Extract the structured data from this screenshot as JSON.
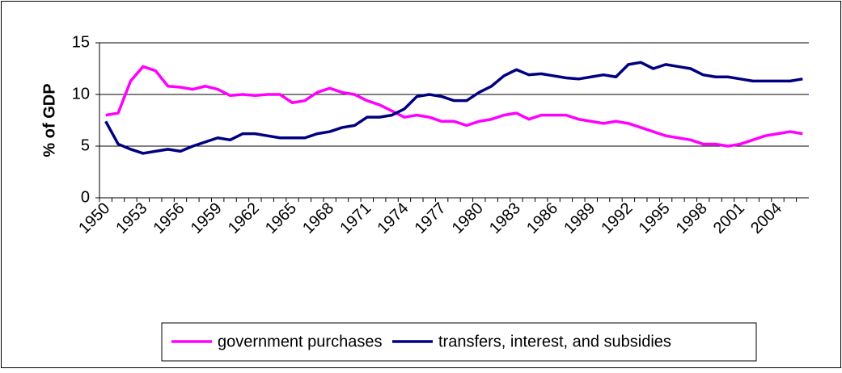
{
  "chart_data": {
    "type": "line",
    "y_label": "% of GDP",
    "categories": [
      "1950",
      null,
      null,
      "1953",
      null,
      null,
      "1956",
      null,
      null,
      "1959",
      null,
      null,
      "1962",
      null,
      null,
      "1965",
      null,
      null,
      "1968",
      null,
      null,
      "1971",
      null,
      null,
      "1974",
      null,
      null,
      "1977",
      null,
      null,
      "1980",
      null,
      null,
      "1983",
      null,
      null,
      "1986",
      null,
      null,
      "1989",
      null,
      null,
      "1992",
      null,
      null,
      "1995",
      null,
      null,
      "1998",
      null,
      null,
      "2001",
      null,
      null,
      "2004",
      null,
      null
    ],
    "series": [
      {
        "name": "government purchases",
        "color": "#ff00ff",
        "values": [
          8.0,
          8.2,
          11.3,
          12.7,
          12.3,
          10.8,
          10.7,
          10.5,
          10.8,
          10.5,
          9.9,
          10.0,
          9.9,
          10.0,
          10.0,
          9.2,
          9.4,
          10.2,
          10.6,
          10.2,
          10.0,
          9.4,
          9.0,
          8.4,
          7.8,
          8.0,
          7.8,
          7.4,
          7.4,
          7.0,
          7.4,
          7.6,
          8.0,
          8.2,
          7.6,
          8.0,
          8.0,
          8.0,
          7.6,
          7.4,
          7.2,
          7.4,
          7.2,
          6.8,
          6.4,
          6.0,
          5.8,
          5.6,
          5.2,
          5.2,
          5.0,
          5.2,
          5.6,
          6.0,
          6.2,
          6.4,
          6.2
        ]
      },
      {
        "name": "transfers, interest, and subsidies",
        "color": "#000080",
        "values": [
          7.4,
          5.2,
          4.7,
          4.3,
          4.5,
          4.7,
          4.5,
          5.0,
          5.4,
          5.8,
          5.6,
          6.2,
          6.2,
          6.0,
          5.8,
          5.8,
          5.8,
          6.2,
          6.4,
          6.8,
          7.0,
          7.8,
          7.8,
          8.0,
          8.6,
          9.8,
          10.0,
          9.8,
          9.4,
          9.4,
          10.2,
          10.8,
          11.8,
          12.4,
          11.9,
          12.0,
          11.8,
          11.6,
          11.5,
          11.7,
          11.9,
          11.7,
          12.9,
          13.1,
          12.5,
          12.9,
          12.7,
          12.5,
          11.9,
          11.7,
          11.7,
          11.5,
          11.3,
          11.3,
          11.3,
          11.3,
          11.5
        ]
      }
    ],
    "ylim": [
      0,
      15
    ],
    "yticks": [
      0,
      5,
      10,
      15
    ],
    "grid": true,
    "legend": "bottom"
  }
}
